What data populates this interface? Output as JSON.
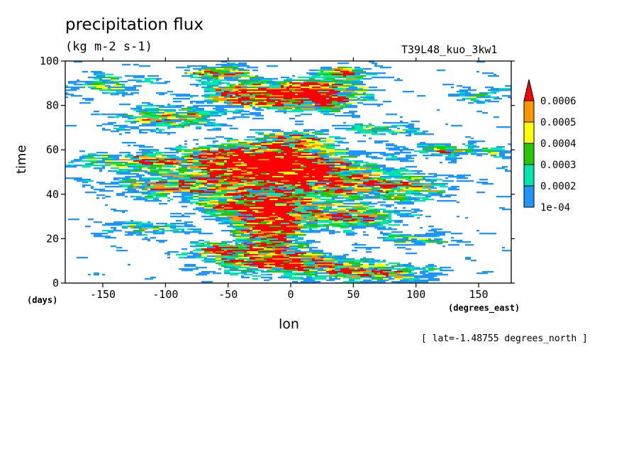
{
  "chart_data": {
    "type": "heatmap",
    "title": "precipitation flux",
    "units": "(kg m-2 s-1)",
    "run_id": "T39L48_kuo_3kw1",
    "xlabel": "lon",
    "x_unit_label": "(degrees_east)",
    "ylabel": "time",
    "y_unit_label": "(days)",
    "note": "[ lat=-1.48755 degrees_north ]",
    "xlim": [
      -180,
      176
    ],
    "ylim": [
      0,
      100
    ],
    "x_ticks": [
      -150,
      -100,
      -50,
      0,
      50,
      100,
      150
    ],
    "y_ticks": [
      0,
      20,
      40,
      60,
      80,
      100
    ],
    "x_tick_labels": [
      "-150",
      "-100",
      "-50",
      "0",
      "50",
      "100",
      "150"
    ],
    "y_tick_labels": [
      "0",
      "20",
      "40",
      "60",
      "80",
      "100"
    ],
    "colorbar": {
      "levels": [
        "1e-04",
        "0.0002",
        "0.0003",
        "0.0004",
        "0.0005",
        "0.0006"
      ],
      "colors": [
        "#1e96ff",
        "#00e6aa",
        "#28c800",
        "#ffff00",
        "#ff9600",
        "#ff0000"
      ],
      "extend": "max"
    },
    "hotspots": [
      {
        "lon": -40,
        "time": 55,
        "w": 45,
        "h": 7,
        "amp": 1.0
      },
      {
        "lon": 5,
        "time": 50,
        "w": 45,
        "h": 9,
        "amp": 0.9
      },
      {
        "lon": -30,
        "time": 85,
        "w": 35,
        "h": 5,
        "amp": 0.95
      },
      {
        "lon": 20,
        "time": 85,
        "w": 30,
        "h": 6,
        "amp": 0.9
      },
      {
        "lon": -20,
        "time": 25,
        "w": 22,
        "h": 11,
        "amp": 0.95
      },
      {
        "lon": -30,
        "time": 35,
        "w": 40,
        "h": 5,
        "amp": 0.8
      },
      {
        "lon": 40,
        "time": 30,
        "w": 40,
        "h": 5,
        "amp": 0.55
      },
      {
        "lon": -10,
        "time": 10,
        "w": 50,
        "h": 5,
        "amp": 0.65
      },
      {
        "lon": 60,
        "time": 5,
        "w": 45,
        "h": 4,
        "amp": 0.55
      },
      {
        "lon": 80,
        "time": 44,
        "w": 45,
        "h": 6,
        "amp": 0.5
      },
      {
        "lon": -90,
        "time": 44,
        "w": 50,
        "h": 5,
        "amp": 0.6
      },
      {
        "lon": -100,
        "time": 75,
        "w": 40,
        "h": 5,
        "amp": 0.5
      },
      {
        "lon": -120,
        "time": 25,
        "w": 40,
        "h": 3,
        "amp": 0.35
      },
      {
        "lon": -150,
        "time": 90,
        "w": 30,
        "h": 4,
        "amp": 0.35
      },
      {
        "lon": 0,
        "time": 65,
        "w": 25,
        "h": 4,
        "amp": 0.6
      },
      {
        "lon": -60,
        "time": 95,
        "w": 25,
        "h": 3,
        "amp": 0.6
      },
      {
        "lon": 40,
        "time": 95,
        "w": 20,
        "h": 3,
        "amp": 0.55
      },
      {
        "lon": 130,
        "time": 60,
        "w": 45,
        "h": 3,
        "amp": 0.4
      },
      {
        "lon": -160,
        "time": 55,
        "w": 20,
        "h": 3,
        "amp": 0.35
      },
      {
        "lon": 100,
        "time": 20,
        "w": 30,
        "h": 3,
        "amp": 0.35
      },
      {
        "lon": -120,
        "time": 55,
        "w": 25,
        "h": 4,
        "amp": 0.5
      },
      {
        "lon": 70,
        "time": 70,
        "w": 30,
        "h": 3,
        "amp": 0.35
      },
      {
        "lon": -60,
        "time": 15,
        "w": 25,
        "h": 3,
        "amp": 0.6
      },
      {
        "lon": 150,
        "time": 85,
        "w": 25,
        "h": 3,
        "amp": 0.3
      }
    ]
  }
}
